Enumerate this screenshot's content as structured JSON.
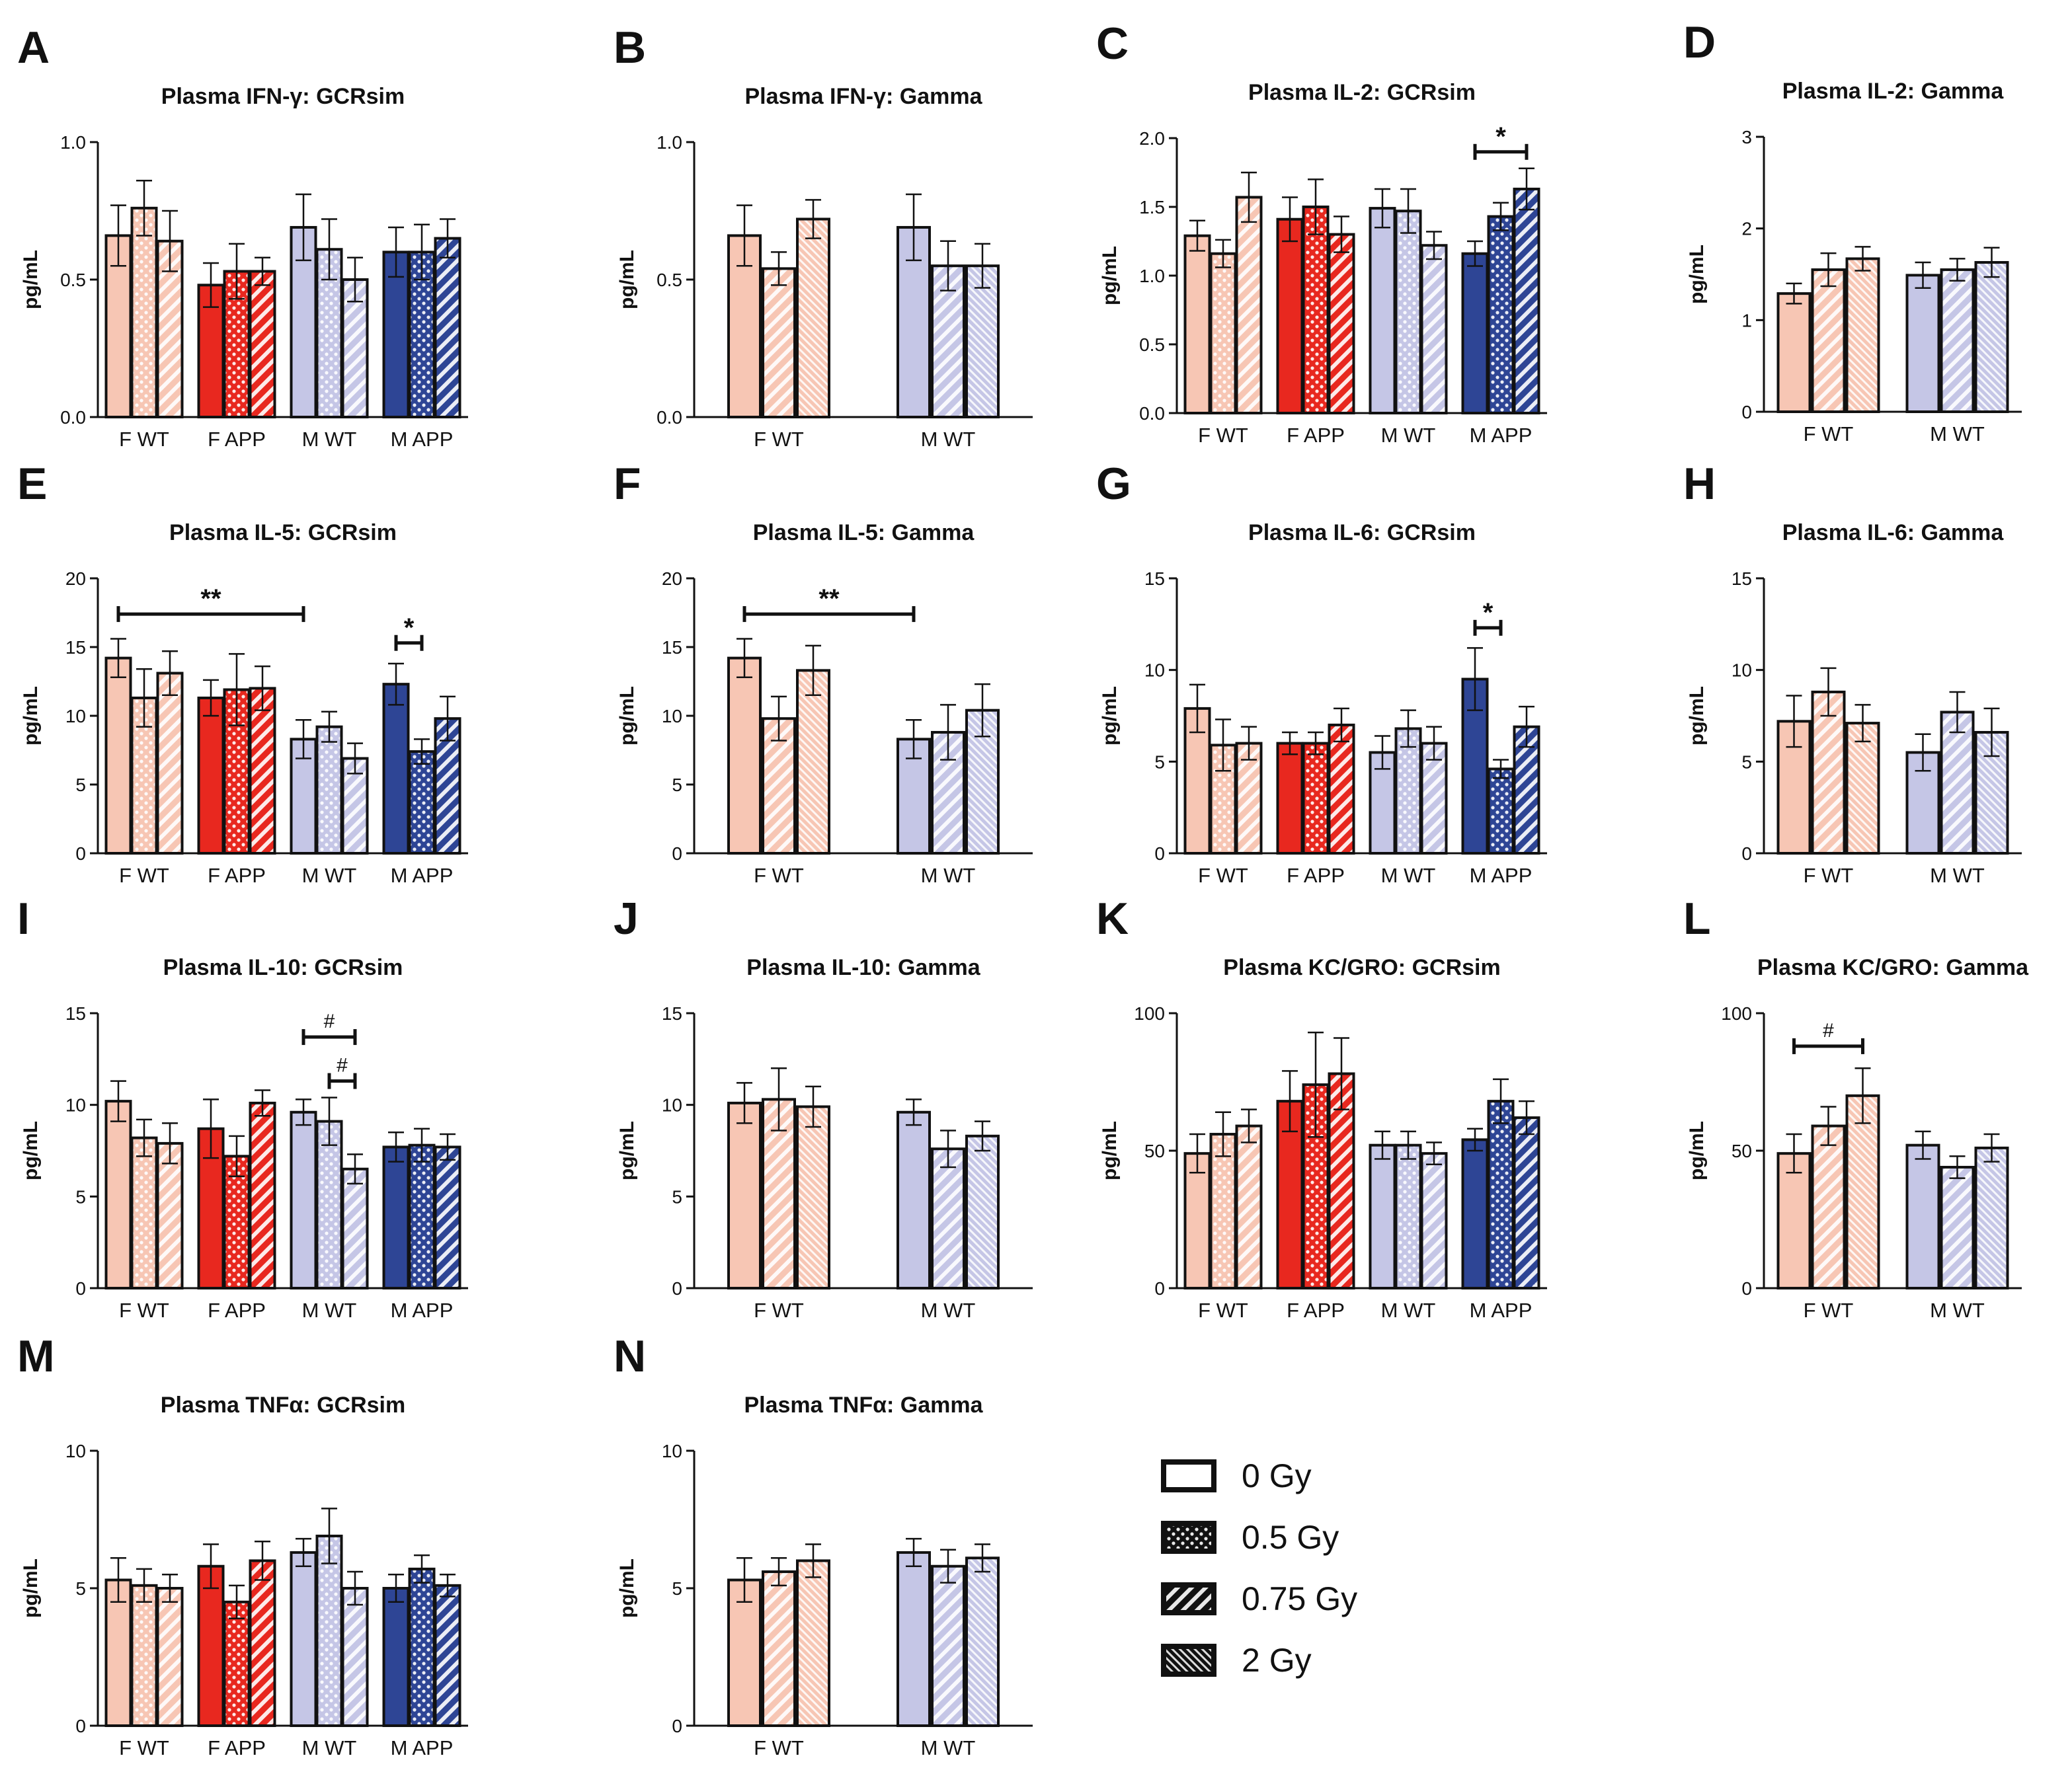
{
  "figure": {
    "colors": {
      "F_WT": "#f7c6b4",
      "F_APP": "#e8281f",
      "M_WT": "#c5c6e6",
      "M_APP": "#2e4595",
      "axis": "#111111"
    },
    "legend": [
      {
        "label": "0 Gy",
        "pattern": "none"
      },
      {
        "label": "0.5 Gy",
        "pattern": "dots"
      },
      {
        "label": "0.75 Gy",
        "pattern": "diag"
      },
      {
        "label": "2 Gy",
        "pattern": "dense"
      }
    ]
  },
  "chart_data": [
    {
      "letter": "A",
      "type": "bar",
      "title": "Plasma IFN-γ: GCRsim",
      "ylabel": "pg/mL",
      "ylim": [
        0,
        1.0
      ],
      "ticks": [
        "0.0",
        "0.5",
        "1.0"
      ],
      "categories": [
        "F WT",
        "F APP",
        "M WT",
        "M APP"
      ],
      "doses": [
        "0 Gy",
        "0.5 Gy",
        "0.75 Gy"
      ],
      "values": [
        [
          0.66,
          0.76,
          0.64
        ],
        [
          0.48,
          0.53,
          0.53
        ],
        [
          0.69,
          0.61,
          0.5
        ],
        [
          0.6,
          0.6,
          0.65
        ]
      ],
      "errors": [
        [
          0.11,
          0.1,
          0.11
        ],
        [
          0.08,
          0.1,
          0.05
        ],
        [
          0.12,
          0.11,
          0.08
        ],
        [
          0.09,
          0.1,
          0.07
        ]
      ],
      "significance": []
    },
    {
      "letter": "B",
      "type": "bar",
      "title": "Plasma IFN-γ: Gamma",
      "ylabel": "pg/mL",
      "ylim": [
        0,
        1.0
      ],
      "ticks": [
        "0.0",
        "0.5",
        "1.0"
      ],
      "categories": [
        "F WT",
        "M WT"
      ],
      "doses": [
        "0 Gy",
        "0.75 Gy",
        "2 Gy"
      ],
      "values": [
        [
          0.66,
          0.54,
          0.72
        ],
        [
          0.69,
          0.55,
          0.55
        ]
      ],
      "errors": [
        [
          0.11,
          0.06,
          0.07
        ],
        [
          0.12,
          0.09,
          0.08
        ]
      ],
      "significance": []
    },
    {
      "letter": "C",
      "type": "bar",
      "title": "Plasma IL-2: GCRsim",
      "ylabel": "pg/mL",
      "ylim": [
        0,
        2.0
      ],
      "ticks": [
        "0.0",
        "0.5",
        "1.0",
        "1.5",
        "2.0"
      ],
      "categories": [
        "F WT",
        "F APP",
        "M WT",
        "M APP"
      ],
      "doses": [
        "0 Gy",
        "0.5 Gy",
        "0.75 Gy"
      ],
      "values": [
        [
          1.29,
          1.16,
          1.57
        ],
        [
          1.41,
          1.5,
          1.3
        ],
        [
          1.49,
          1.47,
          1.22
        ],
        [
          1.16,
          1.43,
          1.63
        ]
      ],
      "errors": [
        [
          0.11,
          0.1,
          0.18
        ],
        [
          0.16,
          0.2,
          0.13
        ],
        [
          0.14,
          0.16,
          0.1
        ],
        [
          0.09,
          0.1,
          0.15
        ]
      ],
      "significance": [
        {
          "label": "*",
          "from": [
            3,
            0
          ],
          "to": [
            3,
            2
          ],
          "y": 1.9
        }
      ]
    },
    {
      "letter": "D",
      "type": "bar",
      "title": "Plasma IL-2: Gamma",
      "ylabel": "pg/mL",
      "ylim": [
        0,
        3
      ],
      "ticks": [
        "0",
        "1",
        "2",
        "3"
      ],
      "categories": [
        "F WT",
        "M WT"
      ],
      "doses": [
        "0 Gy",
        "0.75 Gy",
        "2 Gy"
      ],
      "values": [
        [
          1.29,
          1.55,
          1.67
        ],
        [
          1.49,
          1.55,
          1.63
        ]
      ],
      "errors": [
        [
          0.11,
          0.18,
          0.13
        ],
        [
          0.14,
          0.12,
          0.16
        ]
      ],
      "significance": []
    },
    {
      "letter": "E",
      "type": "bar",
      "title": "Plasma IL-5: GCRsim",
      "ylabel": "pg/mL",
      "ylim": [
        0,
        20
      ],
      "ticks": [
        "0",
        "5",
        "10",
        "15",
        "20"
      ],
      "categories": [
        "F WT",
        "F APP",
        "M WT",
        "M APP"
      ],
      "doses": [
        "0 Gy",
        "0.5 Gy",
        "0.75 Gy"
      ],
      "values": [
        [
          14.2,
          11.3,
          13.1
        ],
        [
          11.3,
          11.9,
          12.0
        ],
        [
          8.3,
          9.2,
          6.9
        ],
        [
          12.3,
          7.4,
          9.8
        ]
      ],
      "errors": [
        [
          1.4,
          2.1,
          1.6
        ],
        [
          1.3,
          2.6,
          1.6
        ],
        [
          1.4,
          1.1,
          1.1
        ],
        [
          1.5,
          0.9,
          1.6
        ]
      ],
      "significance": [
        {
          "label": "**",
          "from": [
            0,
            0
          ],
          "to": [
            2,
            0
          ],
          "y": 17.4
        },
        {
          "label": "*",
          "from": [
            3,
            0
          ],
          "to": [
            3,
            1
          ],
          "y": 15.3
        }
      ]
    },
    {
      "letter": "F",
      "type": "bar",
      "title": "Plasma IL-5: Gamma",
      "ylabel": "pg/mL",
      "ylim": [
        0,
        20
      ],
      "ticks": [
        "0",
        "5",
        "10",
        "15",
        "20"
      ],
      "categories": [
        "F WT",
        "M WT"
      ],
      "doses": [
        "0 Gy",
        "0.75 Gy",
        "2 Gy"
      ],
      "values": [
        [
          14.2,
          9.8,
          13.3
        ],
        [
          8.3,
          8.8,
          10.4
        ]
      ],
      "errors": [
        [
          1.4,
          1.6,
          1.8
        ],
        [
          1.4,
          2.0,
          1.9
        ]
      ],
      "significance": [
        {
          "label": "**",
          "from": [
            0,
            0
          ],
          "to": [
            1,
            0
          ],
          "y": 17.4
        }
      ]
    },
    {
      "letter": "G",
      "type": "bar",
      "title": "Plasma IL-6: GCRsim",
      "ylabel": "pg/mL",
      "ylim": [
        0,
        15
      ],
      "ticks": [
        "0",
        "5",
        "10",
        "15"
      ],
      "categories": [
        "F WT",
        "F APP",
        "M WT",
        "M APP"
      ],
      "doses": [
        "0 Gy",
        "0.5 Gy",
        "0.75 Gy"
      ],
      "values": [
        [
          7.9,
          5.9,
          6.0
        ],
        [
          6.0,
          6.0,
          7.0
        ],
        [
          5.5,
          6.8,
          6.0
        ],
        [
          9.5,
          4.6,
          6.9
        ]
      ],
      "errors": [
        [
          1.3,
          1.4,
          0.9
        ],
        [
          0.6,
          0.6,
          0.9
        ],
        [
          0.9,
          1.0,
          0.9
        ],
        [
          1.7,
          0.5,
          1.1
        ]
      ],
      "significance": [
        {
          "label": "*",
          "from": [
            3,
            0
          ],
          "to": [
            3,
            1
          ],
          "y": 12.3
        }
      ]
    },
    {
      "letter": "H",
      "type": "bar",
      "title": "Plasma IL-6: Gamma",
      "ylabel": "pg/mL",
      "ylim": [
        0,
        15
      ],
      "ticks": [
        "0",
        "5",
        "10",
        "15"
      ],
      "categories": [
        "F WT",
        "M WT"
      ],
      "doses": [
        "0 Gy",
        "0.75 Gy",
        "2 Gy"
      ],
      "values": [
        [
          7.2,
          8.8,
          7.1
        ],
        [
          5.5,
          7.7,
          6.6
        ]
      ],
      "errors": [
        [
          1.4,
          1.3,
          1.0
        ],
        [
          1.0,
          1.1,
          1.3
        ]
      ],
      "significance": []
    },
    {
      "letter": "I",
      "type": "bar",
      "title": "Plasma IL-10: GCRsim",
      "ylabel": "pg/mL",
      "ylim": [
        0,
        15
      ],
      "ticks": [
        "0",
        "5",
        "10",
        "15"
      ],
      "categories": [
        "F WT",
        "F APP",
        "M WT",
        "M APP"
      ],
      "doses": [
        "0 Gy",
        "0.5 Gy",
        "0.75 Gy"
      ],
      "values": [
        [
          10.2,
          8.2,
          7.9
        ],
        [
          8.7,
          7.2,
          10.1
        ],
        [
          9.6,
          9.1,
          6.5
        ],
        [
          7.7,
          7.8,
          7.7
        ]
      ],
      "errors": [
        [
          1.1,
          1.0,
          1.1
        ],
        [
          1.6,
          1.1,
          0.7
        ],
        [
          0.7,
          1.3,
          0.8
        ],
        [
          0.8,
          0.9,
          0.7
        ]
      ],
      "significance": [
        {
          "label": "#",
          "from": [
            2,
            0
          ],
          "to": [
            2,
            2
          ],
          "y": 13.7
        },
        {
          "label": "#",
          "from": [
            2,
            1
          ],
          "to": [
            2,
            2
          ],
          "y": 11.3
        }
      ]
    },
    {
      "letter": "J",
      "type": "bar",
      "title": "Plasma IL-10: Gamma",
      "ylabel": "pg/mL",
      "ylim": [
        0,
        15
      ],
      "ticks": [
        "0",
        "5",
        "10",
        "15"
      ],
      "categories": [
        "F WT",
        "M WT"
      ],
      "doses": [
        "0 Gy",
        "0.75 Gy",
        "2 Gy"
      ],
      "values": [
        [
          10.1,
          10.3,
          9.9
        ],
        [
          9.6,
          7.6,
          8.3
        ]
      ],
      "errors": [
        [
          1.1,
          1.7,
          1.1
        ],
        [
          0.7,
          1.0,
          0.8
        ]
      ],
      "significance": []
    },
    {
      "letter": "K",
      "type": "bar",
      "title": "Plasma KC/GRO: GCRsim",
      "ylabel": "pg/mL",
      "ylim": [
        0,
        100
      ],
      "ticks": [
        "0",
        "50",
        "100"
      ],
      "categories": [
        "F WT",
        "F APP",
        "M WT",
        "M APP"
      ],
      "doses": [
        "0 Gy",
        "0.5 Gy",
        "0.75 Gy"
      ],
      "values": [
        [
          49,
          56,
          59
        ],
        [
          68,
          74,
          78
        ],
        [
          52,
          52,
          49
        ],
        [
          54,
          68,
          62
        ]
      ],
      "errors": [
        [
          7,
          8,
          6
        ],
        [
          11,
          19,
          13
        ],
        [
          5,
          5,
          4
        ],
        [
          4,
          8,
          6
        ]
      ],
      "significance": []
    },
    {
      "letter": "L",
      "type": "bar",
      "title": "Plasma KC/GRO: Gamma",
      "ylabel": "pg/mL",
      "ylim": [
        0,
        100
      ],
      "ticks": [
        "0",
        "50",
        "100"
      ],
      "categories": [
        "F WT",
        "M WT"
      ],
      "doses": [
        "0 Gy",
        "0.75 Gy",
        "2 Gy"
      ],
      "values": [
        [
          49,
          59,
          70
        ],
        [
          52,
          44,
          51
        ]
      ],
      "errors": [
        [
          7,
          7,
          10
        ],
        [
          5,
          4,
          5
        ]
      ],
      "significance": [
        {
          "label": "#",
          "from": [
            0,
            0
          ],
          "to": [
            0,
            2
          ],
          "y": 88
        }
      ]
    },
    {
      "letter": "M",
      "type": "bar",
      "title": "Plasma TNFα: GCRsim",
      "ylabel": "pg/mL",
      "ylim": [
        0,
        10
      ],
      "ticks": [
        "0",
        "5",
        "10"
      ],
      "categories": [
        "F WT",
        "F APP",
        "M WT",
        "M APP"
      ],
      "doses": [
        "0 Gy",
        "0.5 Gy",
        "0.75 Gy"
      ],
      "values": [
        [
          5.3,
          5.1,
          5.0
        ],
        [
          5.8,
          4.5,
          6.0
        ],
        [
          6.3,
          6.9,
          5.0
        ],
        [
          5.0,
          5.7,
          5.1
        ]
      ],
      "errors": [
        [
          0.8,
          0.6,
          0.5
        ],
        [
          0.8,
          0.6,
          0.7
        ],
        [
          0.5,
          1.0,
          0.6
        ],
        [
          0.5,
          0.5,
          0.4
        ]
      ],
      "significance": []
    },
    {
      "letter": "N",
      "type": "bar",
      "title": "Plasma TNFα: Gamma",
      "ylabel": "pg/mL",
      "ylim": [
        0,
        10
      ],
      "ticks": [
        "0",
        "5",
        "10"
      ],
      "categories": [
        "F WT",
        "M WT"
      ],
      "doses": [
        "0 Gy",
        "0.75 Gy",
        "2 Gy"
      ],
      "values": [
        [
          5.3,
          5.6,
          6.0
        ],
        [
          6.3,
          5.8,
          6.1
        ]
      ],
      "errors": [
        [
          0.8,
          0.5,
          0.6
        ],
        [
          0.5,
          0.6,
          0.5
        ]
      ],
      "significance": []
    }
  ]
}
